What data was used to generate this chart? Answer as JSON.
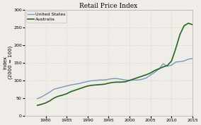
{
  "title": "Retail Price Index",
  "ylabel": "Index\n(2000 = 100)",
  "xlim": [
    1975,
    2015
  ],
  "ylim": [
    0,
    300
  ],
  "yticks": [
    0,
    50,
    100,
    150,
    200,
    250,
    300
  ],
  "xticks": [
    1980,
    1985,
    1990,
    1995,
    2000,
    2005,
    2010,
    2015
  ],
  "us_color": "#7799bb",
  "au_color": "#226622",
  "background": "#f0ede8",
  "grid_color": "#ccccbb",
  "us_data": {
    "years": [
      1978,
      1979,
      1980,
      1981,
      1982,
      1983,
      1984,
      1985,
      1986,
      1987,
      1988,
      1989,
      1990,
      1991,
      1992,
      1993,
      1994,
      1995,
      1996,
      1997,
      1998,
      1999,
      2000,
      2001,
      2002,
      2003,
      2004,
      2005,
      2006,
      2007,
      2008,
      2009,
      2010,
      2011,
      2012,
      2013,
      2014,
      2015
    ],
    "values": [
      48,
      53,
      60,
      67,
      75,
      78,
      81,
      84,
      87,
      89,
      91,
      94,
      97,
      99,
      100,
      101,
      101,
      103,
      105,
      105,
      103,
      101,
      100,
      101,
      101,
      103,
      107,
      115,
      123,
      132,
      147,
      140,
      143,
      152,
      153,
      155,
      160,
      162
    ]
  },
  "au_data": {
    "years": [
      1978,
      1979,
      1980,
      1981,
      1982,
      1983,
      1984,
      1985,
      1986,
      1987,
      1988,
      1989,
      1990,
      1991,
      1992,
      1993,
      1994,
      1995,
      1996,
      1997,
      1998,
      1999,
      2000,
      2001,
      2002,
      2003,
      2004,
      2005,
      2006,
      2007,
      2008,
      2009,
      2010,
      2011,
      2012,
      2013,
      2014,
      2015
    ],
    "values": [
      29,
      32,
      36,
      42,
      50,
      55,
      58,
      62,
      68,
      72,
      76,
      80,
      84,
      86,
      87,
      88,
      89,
      92,
      94,
      95,
      95,
      96,
      100,
      104,
      108,
      112,
      116,
      121,
      128,
      133,
      138,
      142,
      155,
      190,
      230,
      255,
      262,
      258
    ]
  }
}
